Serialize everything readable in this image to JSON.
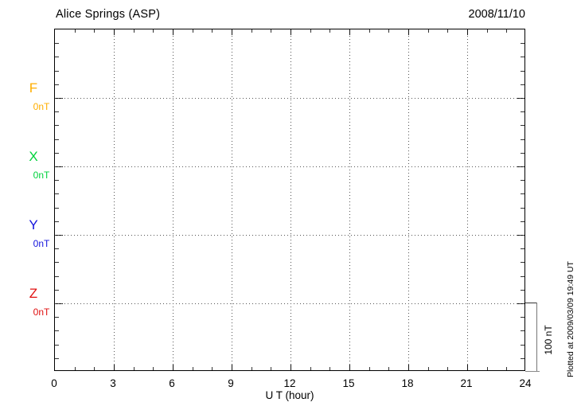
{
  "header": {
    "title": "Alice Springs (ASP)",
    "date": "2008/11/10"
  },
  "watermark": {
    "plotted_at": "Plotted at 2009/03/09 19:49 UT"
  },
  "chart_data": {
    "type": "line",
    "title": "Alice Springs (ASP)",
    "date": "2008/11/10",
    "xlabel": "U T (hour)",
    "xlim": [
      0,
      24
    ],
    "x_major_ticks": [
      0,
      3,
      6,
      9,
      12,
      15,
      18,
      21,
      24
    ],
    "x_minor_step": 1,
    "grid": "dotted",
    "legend_position": "left",
    "series": [
      {
        "name": "F",
        "baseline_label": "0nT",
        "color": "#FFAE00",
        "values": []
      },
      {
        "name": "X",
        "baseline_label": "0nT",
        "color": "#00D23C",
        "values": []
      },
      {
        "name": "Y",
        "baseline_label": "0nT",
        "color": "#1414DC",
        "values": []
      },
      {
        "name": "Z",
        "baseline_label": "0nT",
        "color": "#E01010",
        "values": []
      }
    ],
    "minor_divisions_per_band": 5,
    "scale_bar": {
      "label": "100 nT",
      "span_nt": 100
    },
    "note": "empty magnetogram grid; no data traces plotted, baselines at 0 nT"
  }
}
